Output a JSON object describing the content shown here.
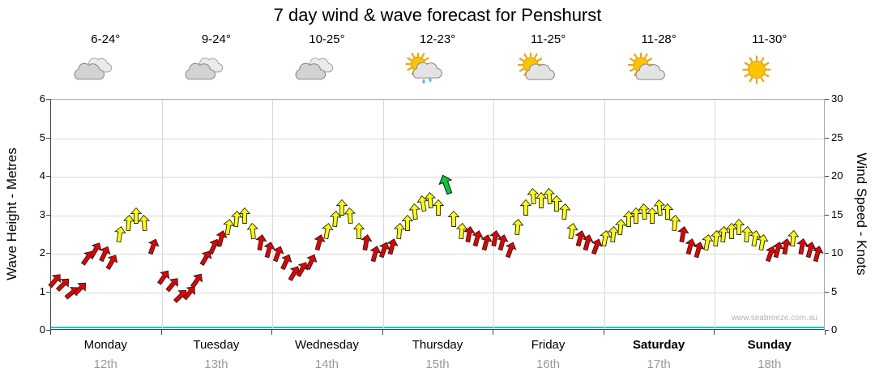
{
  "title": "7 day wind & wave forecast for Penshurst",
  "watermark": "www.seabreeze.com.au",
  "days": [
    {
      "name": "Monday",
      "date": "12th",
      "temp": "6-24°",
      "icon": "cloudy",
      "bold": false
    },
    {
      "name": "Tuesday",
      "date": "13th",
      "temp": "9-24°",
      "icon": "cloudy",
      "bold": false
    },
    {
      "name": "Wednesday",
      "date": "14th",
      "temp": "10-25°",
      "icon": "cloudy",
      "bold": false
    },
    {
      "name": "Thursday",
      "date": "15th",
      "temp": "12-23°",
      "icon": "sun-cloud-rain",
      "bold": false
    },
    {
      "name": "Friday",
      "date": "16th",
      "temp": "11-25°",
      "icon": "sun-cloud",
      "bold": false
    },
    {
      "name": "Saturday",
      "date": "17th",
      "temp": "11-28°",
      "icon": "sun-cloud",
      "bold": true
    },
    {
      "name": "Sunday",
      "date": "18th",
      "temp": "11-30°",
      "icon": "sunny",
      "bold": true
    }
  ],
  "axes": {
    "left_label": "Wave Height - Metres",
    "left_ticks": [
      0,
      1,
      2,
      3,
      4,
      5,
      6
    ],
    "right_label": "Wind Speed - Knots",
    "right_ticks": [
      0,
      5,
      10,
      15,
      20,
      25,
      30
    ]
  },
  "colors": {
    "red": "#e80000",
    "yellow": "#ffff00",
    "green": "#00cc33",
    "zero_line_teal": "#00c8c8"
  },
  "chart_data": {
    "type": "scatter",
    "marker": "wind-direction-arrow",
    "title": "7 day wind & wave forecast for Penshurst",
    "x_axis": {
      "range_days": [
        0,
        7
      ],
      "categories": [
        "Monday 12th",
        "Tuesday 13th",
        "Wednesday 14th",
        "Thursday 15th",
        "Friday 16th",
        "Saturday 17th",
        "Sunday 18th"
      ]
    },
    "left_axis": {
      "label": "Wave Height - Metres",
      "range": [
        0,
        6
      ]
    },
    "right_axis": {
      "label": "Wind Speed - Knots",
      "range": [
        0,
        30
      ]
    },
    "wave_height_series": {
      "value_metres": 0,
      "style": "flat teal line at zero"
    },
    "point_format": [
      "time_days",
      "wind_knots",
      "arrow_rotation_deg",
      "color_code"
    ],
    "color_codes": {
      "r": "red",
      "y": "yellow",
      "g": "green"
    },
    "points": [
      [
        0.04,
        6.5,
        40,
        "r"
      ],
      [
        0.11,
        6.0,
        45,
        "r"
      ],
      [
        0.19,
        5.0,
        50,
        "r"
      ],
      [
        0.26,
        5.5,
        45,
        "r"
      ],
      [
        0.33,
        9.5,
        35,
        "r"
      ],
      [
        0.4,
        10.5,
        30,
        "r"
      ],
      [
        0.48,
        10.0,
        25,
        "r"
      ],
      [
        0.55,
        9.0,
        30,
        "r"
      ],
      [
        0.62,
        12.5,
        10,
        "y"
      ],
      [
        0.7,
        14.0,
        5,
        "y"
      ],
      [
        0.77,
        15.0,
        0,
        "y"
      ],
      [
        0.84,
        14.0,
        -5,
        "y"
      ],
      [
        0.92,
        11.0,
        20,
        "r"
      ],
      [
        1.02,
        7.0,
        35,
        "r"
      ],
      [
        1.1,
        6.0,
        40,
        "r"
      ],
      [
        1.17,
        4.5,
        45,
        "r"
      ],
      [
        1.25,
        5.0,
        40,
        "r"
      ],
      [
        1.32,
        6.5,
        35,
        "r"
      ],
      [
        1.4,
        9.5,
        30,
        "r"
      ],
      [
        1.47,
        11.0,
        25,
        "r"
      ],
      [
        1.54,
        12.0,
        15,
        "r"
      ],
      [
        1.6,
        13.5,
        10,
        "y"
      ],
      [
        1.68,
        14.5,
        5,
        "y"
      ],
      [
        1.75,
        15.0,
        0,
        "y"
      ],
      [
        1.82,
        13.0,
        -5,
        "y"
      ],
      [
        1.9,
        11.5,
        10,
        "r"
      ],
      [
        1.97,
        10.5,
        15,
        "r"
      ],
      [
        2.05,
        10.0,
        20,
        "r"
      ],
      [
        2.12,
        9.0,
        25,
        "r"
      ],
      [
        2.2,
        7.5,
        30,
        "r"
      ],
      [
        2.27,
        8.0,
        30,
        "r"
      ],
      [
        2.35,
        9.0,
        25,
        "r"
      ],
      [
        2.42,
        11.5,
        15,
        "r"
      ],
      [
        2.5,
        13.0,
        10,
        "y"
      ],
      [
        2.57,
        14.5,
        5,
        "y"
      ],
      [
        2.63,
        16.0,
        0,
        "y"
      ],
      [
        2.7,
        15.0,
        -5,
        "y"
      ],
      [
        2.78,
        13.0,
        0,
        "y"
      ],
      [
        2.85,
        11.5,
        10,
        "r"
      ],
      [
        2.93,
        10.0,
        15,
        "r"
      ],
      [
        3.01,
        10.5,
        20,
        "r"
      ],
      [
        3.08,
        11.0,
        15,
        "r"
      ],
      [
        3.15,
        13.0,
        5,
        "y"
      ],
      [
        3.22,
        14.0,
        0,
        "y"
      ],
      [
        3.29,
        15.5,
        -5,
        "y"
      ],
      [
        3.36,
        16.5,
        -10,
        "y"
      ],
      [
        3.43,
        17.0,
        -5,
        "y"
      ],
      [
        3.5,
        16.0,
        0,
        "y"
      ],
      [
        3.57,
        19.0,
        -20,
        "g"
      ],
      [
        3.64,
        14.5,
        0,
        "y"
      ],
      [
        3.71,
        13.0,
        5,
        "y"
      ],
      [
        3.78,
        12.5,
        10,
        "r"
      ],
      [
        3.85,
        12.0,
        15,
        "r"
      ],
      [
        3.93,
        11.5,
        15,
        "r"
      ],
      [
        4.01,
        12.0,
        10,
        "r"
      ],
      [
        4.08,
        11.5,
        15,
        "r"
      ],
      [
        4.15,
        10.5,
        20,
        "r"
      ],
      [
        4.22,
        13.5,
        5,
        "y"
      ],
      [
        4.29,
        16.0,
        0,
        "y"
      ],
      [
        4.36,
        17.5,
        -5,
        "y"
      ],
      [
        4.43,
        17.0,
        0,
        "y"
      ],
      [
        4.5,
        17.5,
        -5,
        "y"
      ],
      [
        4.57,
        16.5,
        0,
        "y"
      ],
      [
        4.64,
        15.5,
        5,
        "y"
      ],
      [
        4.71,
        13.0,
        10,
        "y"
      ],
      [
        4.78,
        12.0,
        15,
        "r"
      ],
      [
        4.85,
        11.5,
        15,
        "r"
      ],
      [
        4.93,
        11.0,
        20,
        "r"
      ],
      [
        5.01,
        12.0,
        10,
        "y"
      ],
      [
        5.08,
        12.5,
        5,
        "y"
      ],
      [
        5.15,
        13.5,
        5,
        "y"
      ],
      [
        5.22,
        14.5,
        0,
        "y"
      ],
      [
        5.29,
        15.0,
        0,
        "y"
      ],
      [
        5.36,
        15.5,
        -5,
        "y"
      ],
      [
        5.43,
        15.0,
        0,
        "y"
      ],
      [
        5.5,
        16.0,
        -5,
        "y"
      ],
      [
        5.57,
        15.5,
        0,
        "y"
      ],
      [
        5.64,
        14.0,
        5,
        "y"
      ],
      [
        5.71,
        12.5,
        10,
        "r"
      ],
      [
        5.78,
        11.0,
        15,
        "r"
      ],
      [
        5.85,
        10.5,
        15,
        "r"
      ],
      [
        5.93,
        11.5,
        10,
        "y"
      ],
      [
        6.01,
        12.0,
        5,
        "y"
      ],
      [
        6.08,
        12.5,
        5,
        "y"
      ],
      [
        6.15,
        13.0,
        0,
        "y"
      ],
      [
        6.22,
        13.5,
        0,
        "y"
      ],
      [
        6.29,
        12.5,
        5,
        "y"
      ],
      [
        6.36,
        12.0,
        10,
        "y"
      ],
      [
        6.43,
        11.5,
        10,
        "y"
      ],
      [
        6.5,
        10.0,
        20,
        "r"
      ],
      [
        6.57,
        10.5,
        15,
        "r"
      ],
      [
        6.64,
        11.0,
        10,
        "r"
      ],
      [
        6.71,
        12.0,
        5,
        "y"
      ],
      [
        6.79,
        11.0,
        10,
        "r"
      ],
      [
        6.86,
        10.5,
        15,
        "r"
      ],
      [
        6.93,
        10.0,
        15,
        "r"
      ]
    ]
  }
}
